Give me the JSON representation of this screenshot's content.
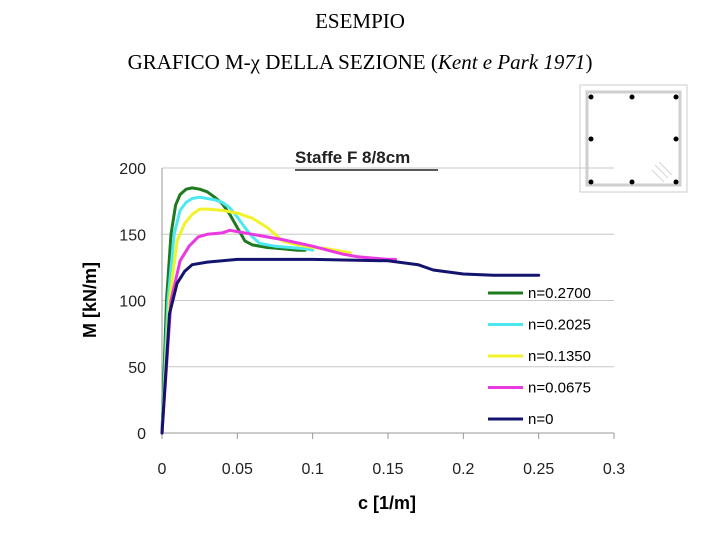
{
  "slide": {
    "title_line1": "ESEMPIO",
    "title_line2_prefix": "GRAFICO M-χ DELLA SEZIONE (",
    "title_line2_italic": "Kent e Park 1971",
    "title_line2_suffix": ")"
  },
  "section_sketch": {
    "label": "Section detail",
    "bar_color": "#000000"
  },
  "chart_data": {
    "type": "line",
    "title": "Staffe F 8/8cm",
    "xlabel": "c [1/m]",
    "ylabel": "M [kN/m]",
    "xlim": [
      0,
      0.3
    ],
    "ylim": [
      0,
      200
    ],
    "xticks": [
      "0",
      "0.05",
      "0.1",
      "0.15",
      "0.2",
      "0.25",
      "0.3"
    ],
    "yticks": [
      "0",
      "50",
      "100",
      "150",
      "200"
    ],
    "grid": "horizontal",
    "legend_position": "bottom-right",
    "series": [
      {
        "name": "n=0.2700",
        "color": "#1e7a1e",
        "x": [
          0,
          0.003,
          0.006,
          0.009,
          0.012,
          0.016,
          0.02,
          0.025,
          0.03,
          0.035,
          0.04,
          0.045,
          0.05,
          0.055,
          0.06,
          0.07,
          0.08,
          0.09,
          0.095
        ],
        "y": [
          0,
          100,
          150,
          172,
          180,
          184,
          185,
          184,
          182,
          178,
          173,
          165,
          155,
          145,
          142,
          140,
          139,
          138,
          138
        ]
      },
      {
        "name": "n=0.2025",
        "color": "#4de8ef",
        "x": [
          0,
          0.004,
          0.008,
          0.012,
          0.016,
          0.02,
          0.025,
          0.03,
          0.035,
          0.04,
          0.045,
          0.05,
          0.055,
          0.06,
          0.065,
          0.075,
          0.085,
          0.095,
          0.1
        ],
        "y": [
          0,
          100,
          150,
          168,
          174,
          177,
          178,
          177,
          176,
          174,
          170,
          163,
          155,
          148,
          143,
          141,
          140,
          139,
          138
        ]
      },
      {
        "name": "n=0.1350",
        "color": "#f2f22a",
        "x": [
          0,
          0.005,
          0.01,
          0.015,
          0.02,
          0.025,
          0.03,
          0.04,
          0.05,
          0.06,
          0.07,
          0.08,
          0.09,
          0.1,
          0.11,
          0.12,
          0.125
        ],
        "y": [
          0,
          100,
          145,
          158,
          165,
          169,
          169,
          168,
          166,
          162,
          155,
          145,
          142,
          140,
          139,
          137,
          136
        ]
      },
      {
        "name": "n=0.0675",
        "color": "#e83ae0",
        "x": [
          0,
          0.006,
          0.012,
          0.018,
          0.024,
          0.03,
          0.04,
          0.045,
          0.05,
          0.06,
          0.08,
          0.1,
          0.11,
          0.12,
          0.13,
          0.14,
          0.15,
          0.155
        ],
        "y": [
          0,
          100,
          130,
          141,
          148,
          150,
          151,
          153,
          152,
          150,
          146,
          141,
          138,
          135,
          133,
          132,
          131,
          131
        ]
      },
      {
        "name": "n=0",
        "color": "#14146e",
        "x": [
          0,
          0.005,
          0.01,
          0.015,
          0.02,
          0.03,
          0.04,
          0.05,
          0.06,
          0.1,
          0.15,
          0.17,
          0.18,
          0.2,
          0.22,
          0.24,
          0.25
        ],
        "y": [
          0,
          90,
          113,
          122,
          127,
          129,
          130,
          131,
          131,
          131,
          130,
          127,
          123,
          120,
          119,
          119,
          119
        ]
      }
    ]
  }
}
